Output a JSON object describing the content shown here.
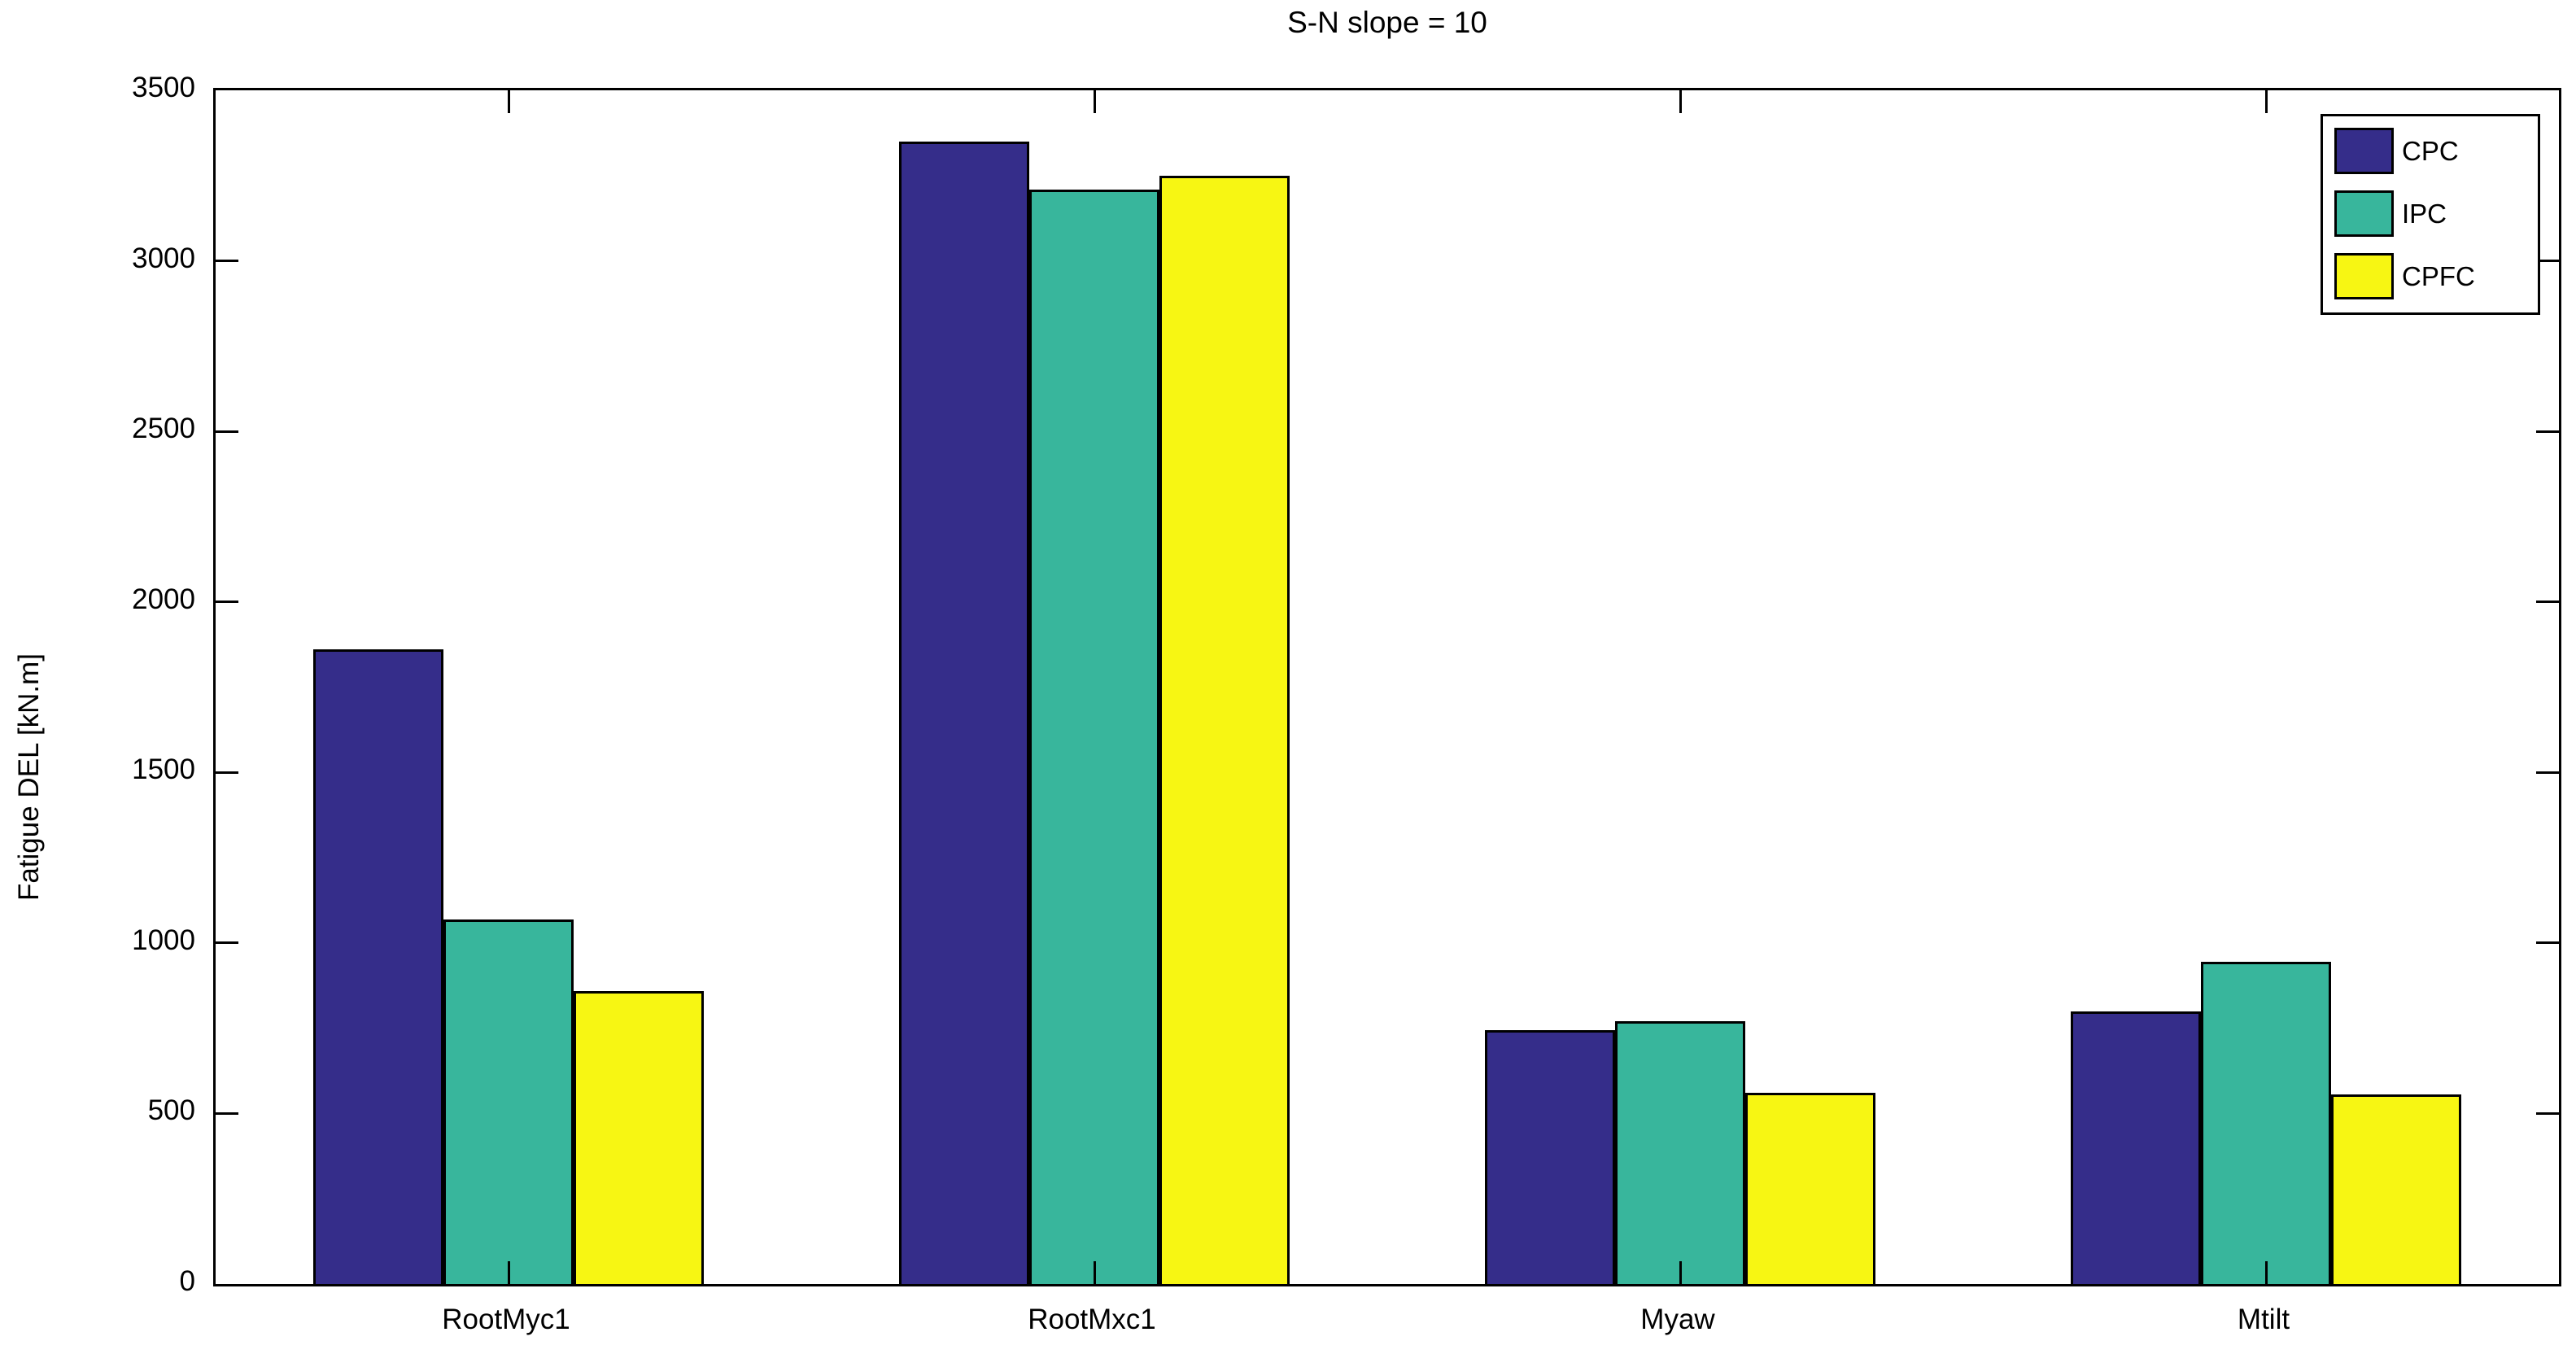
{
  "figure": {
    "background": "#ffffff",
    "frame_color": "#000000"
  },
  "chart_data": {
    "type": "bar",
    "title": "S-N slope = 10",
    "xlabel": "",
    "ylabel": "Fatigue DEL [kN.m]",
    "categories": [
      "RootMyc1",
      "RootMxc1",
      "Myaw",
      "Mtilt"
    ],
    "series": [
      {
        "name": "CPC",
        "color": "#352d8a",
        "values": [
          1860,
          3350,
          745,
          800
        ]
      },
      {
        "name": "IPC",
        "color": "#38b69c",
        "values": [
          1070,
          3210,
          770,
          945
        ]
      },
      {
        "name": "CPFC",
        "color": "#f7f613",
        "values": [
          860,
          3250,
          560,
          555
        ]
      }
    ],
    "ylim": [
      0,
      3500
    ],
    "yticks": [
      0,
      500,
      1000,
      1500,
      2000,
      2500,
      3000,
      3500
    ],
    "grid": false,
    "legend_position": "top-right",
    "bar_edge_color": "#000000",
    "tick_direction": "in",
    "box": true
  }
}
